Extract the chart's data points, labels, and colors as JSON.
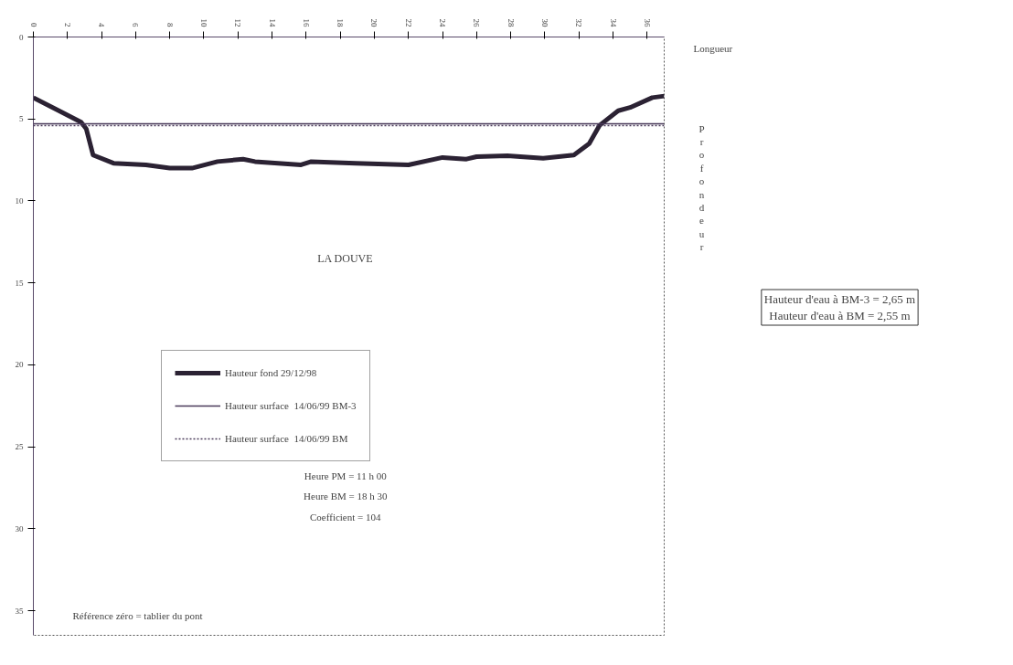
{
  "chart_data": {
    "type": "line",
    "title": "LA DOUVE",
    "xlabel": "Longueur",
    "ylabel": "Profondeur",
    "xlim": [
      0,
      37
    ],
    "ylim": [
      36.5,
      0
    ],
    "xticks": [
      0,
      2,
      4,
      6,
      8,
      10,
      12,
      14,
      16,
      18,
      20,
      22,
      24,
      26,
      28,
      30,
      32,
      34,
      36
    ],
    "yticks": [
      0,
      5,
      10,
      15,
      20,
      25,
      30,
      35
    ],
    "grid": false,
    "legend": "center",
    "series": [
      {
        "name": "Hauteur fond 29/12/98",
        "color": "#2b2233",
        "line_style": "solid",
        "x": [
          0,
          1.5,
          2.8,
          3.1,
          3.5,
          4.7,
          6.6,
          8,
          9.3,
          10.8,
          12.3,
          13,
          15.7,
          16.3,
          18.9,
          22,
          24,
          25.4,
          26,
          27.8,
          29.9,
          31.7,
          32.6,
          33.2,
          34.3,
          35,
          36.3,
          37
        ],
        "values": [
          3.7,
          4.5,
          5.2,
          5.6,
          7.2,
          7.7,
          7.8,
          8.0,
          8.0,
          7.6,
          7.45,
          7.6,
          7.8,
          7.6,
          7.7,
          7.8,
          7.35,
          7.45,
          7.3,
          7.25,
          7.4,
          7.2,
          6.5,
          5.4,
          4.5,
          4.3,
          3.7,
          3.6
        ]
      },
      {
        "name": "Hauteur surface  14/06/99 BM-3",
        "color": "#4a3a5a",
        "line_style": "solid",
        "x": [
          0,
          37
        ],
        "values": [
          5.3,
          5.3
        ]
      },
      {
        "name": "Hauteur surface  14/06/99 BM",
        "color": "#4a3a5a",
        "line_style": "dotted",
        "x": [
          0,
          37
        ],
        "values": [
          5.4,
          5.4
        ]
      }
    ],
    "annotations": [
      "Heure PM = 11 h 00",
      "Heure BM = 18 h 30",
      "Coefficient = 104",
      "Référence zéro = tablier du pont",
      "Hauteur d'eau à BM-3 = 2,65 m",
      "Hauteur d'eau à BM = 2,55 m"
    ]
  }
}
